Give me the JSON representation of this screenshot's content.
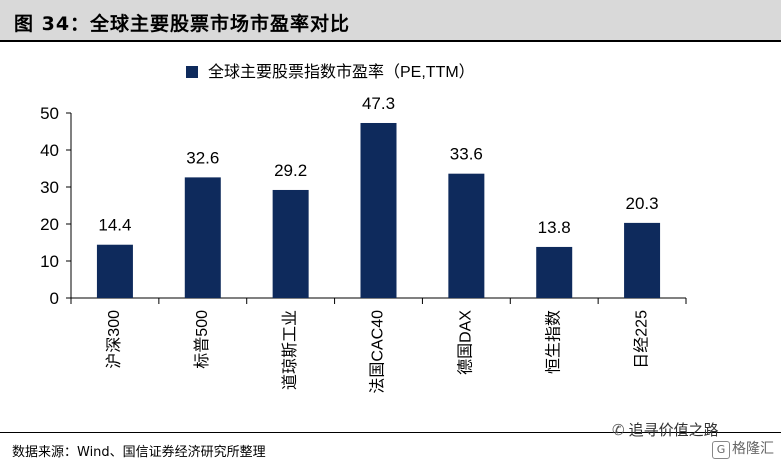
{
  "header": {
    "title": "图 34：全球主要股票市场市盈率对比"
  },
  "chart_data": {
    "type": "bar",
    "categories": [
      "沪深300",
      "标普500",
      "道琼斯工业",
      "法国CAC40",
      "德国DAX",
      "恒生指数",
      "日经225"
    ],
    "series": [
      {
        "name": "全球主要股票指数市盈率（PE,TTM）",
        "values": [
          14.4,
          32.6,
          29.2,
          47.3,
          33.6,
          13.8,
          20.3
        ]
      }
    ],
    "data_labels": [
      "14.4",
      "32.6",
      "29.2",
      "47.3",
      "33.6",
      "13.8",
      "20.3"
    ],
    "ylim": [
      0,
      50
    ],
    "yticks": [
      0,
      10,
      20,
      30,
      40,
      50
    ],
    "title": "",
    "xlabel": "",
    "ylabel": "",
    "grid": false,
    "legend_position": "top-center",
    "bar_color": "#0e2a5c"
  },
  "footer": {
    "source": "数据来源：Wind、国信证券经济研究所整理",
    "watermark": "追寻价值之路",
    "logo": "格隆汇",
    "wechat_icon": "wechat-icon"
  }
}
